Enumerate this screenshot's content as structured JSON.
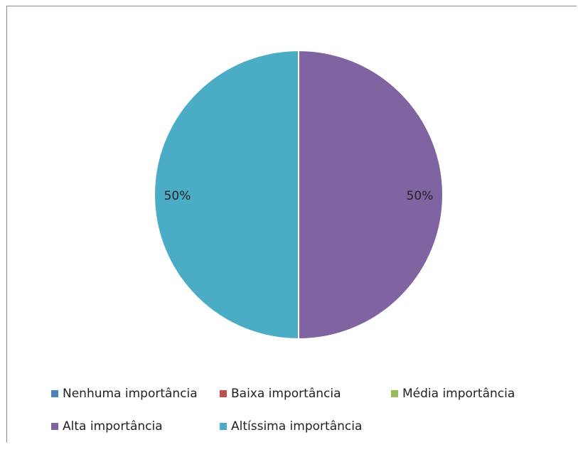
{
  "chart_data": {
    "type": "pie",
    "title": "",
    "categories": [
      "Nenhuma importância",
      "Baixa importância",
      "Média importância",
      "Alta importância",
      "Altíssima importância"
    ],
    "values": [
      0,
      0,
      0,
      50,
      50
    ],
    "data_labels": [
      "",
      "",
      "",
      "50%",
      "50%"
    ],
    "colors": [
      "#4F81BD",
      "#C0504D",
      "#9BBB59",
      "#8064A2",
      "#4BACC6"
    ],
    "legend_position": "bottom"
  }
}
